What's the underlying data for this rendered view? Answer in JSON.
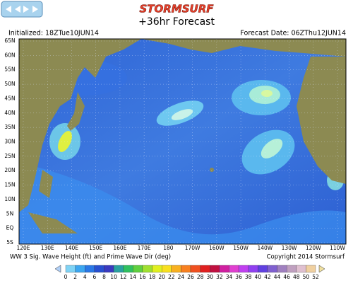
{
  "header": {
    "logo": "STORMSURF",
    "title": "+36hr Forecast",
    "initialized": "Initialized: 18ZTue10JUN14",
    "forecast_date": "Forecast Date: 06ZThu12JUN14"
  },
  "map": {
    "lat_labels": [
      "65N",
      "60N",
      "55N",
      "50N",
      "45N",
      "40N",
      "35N",
      "30N",
      "25N",
      "20N",
      "15N",
      "10N",
      "5N",
      "EQ",
      "5S"
    ],
    "lon_labels": [
      "120E",
      "130E",
      "140E",
      "150E",
      "160E",
      "170E",
      "180",
      "170W",
      "160W",
      "150W",
      "140W",
      "130W",
      "120W",
      "110W"
    ]
  },
  "footer": {
    "caption": "WW 3 Sig. Wave Height (ft) and Prime Wave Dir (deg)",
    "copyright": "Copyright 2014 Stormsurf"
  },
  "colorbar": {
    "labels": [
      0,
      2,
      4,
      6,
      8,
      10,
      12,
      14,
      16,
      18,
      20,
      22,
      24,
      26,
      28,
      30,
      32,
      34,
      36,
      38,
      40,
      42,
      44,
      46,
      48,
      50,
      52
    ],
    "colors": [
      "#7fd3f5",
      "#3ca6f0",
      "#2a78e6",
      "#2850d0",
      "#3a3ac0",
      "#2aa0a0",
      "#30c060",
      "#60d040",
      "#a0e030",
      "#e0f020",
      "#f8e020",
      "#f8b020",
      "#f88020",
      "#f05020",
      "#e02020",
      "#c01040",
      "#d020a0",
      "#e040d0",
      "#c040f0",
      "#9040f0",
      "#6040e0",
      "#8060d0",
      "#a080c0",
      "#c0a0c0",
      "#e0c0d0",
      "#f0d0a0"
    ]
  }
}
